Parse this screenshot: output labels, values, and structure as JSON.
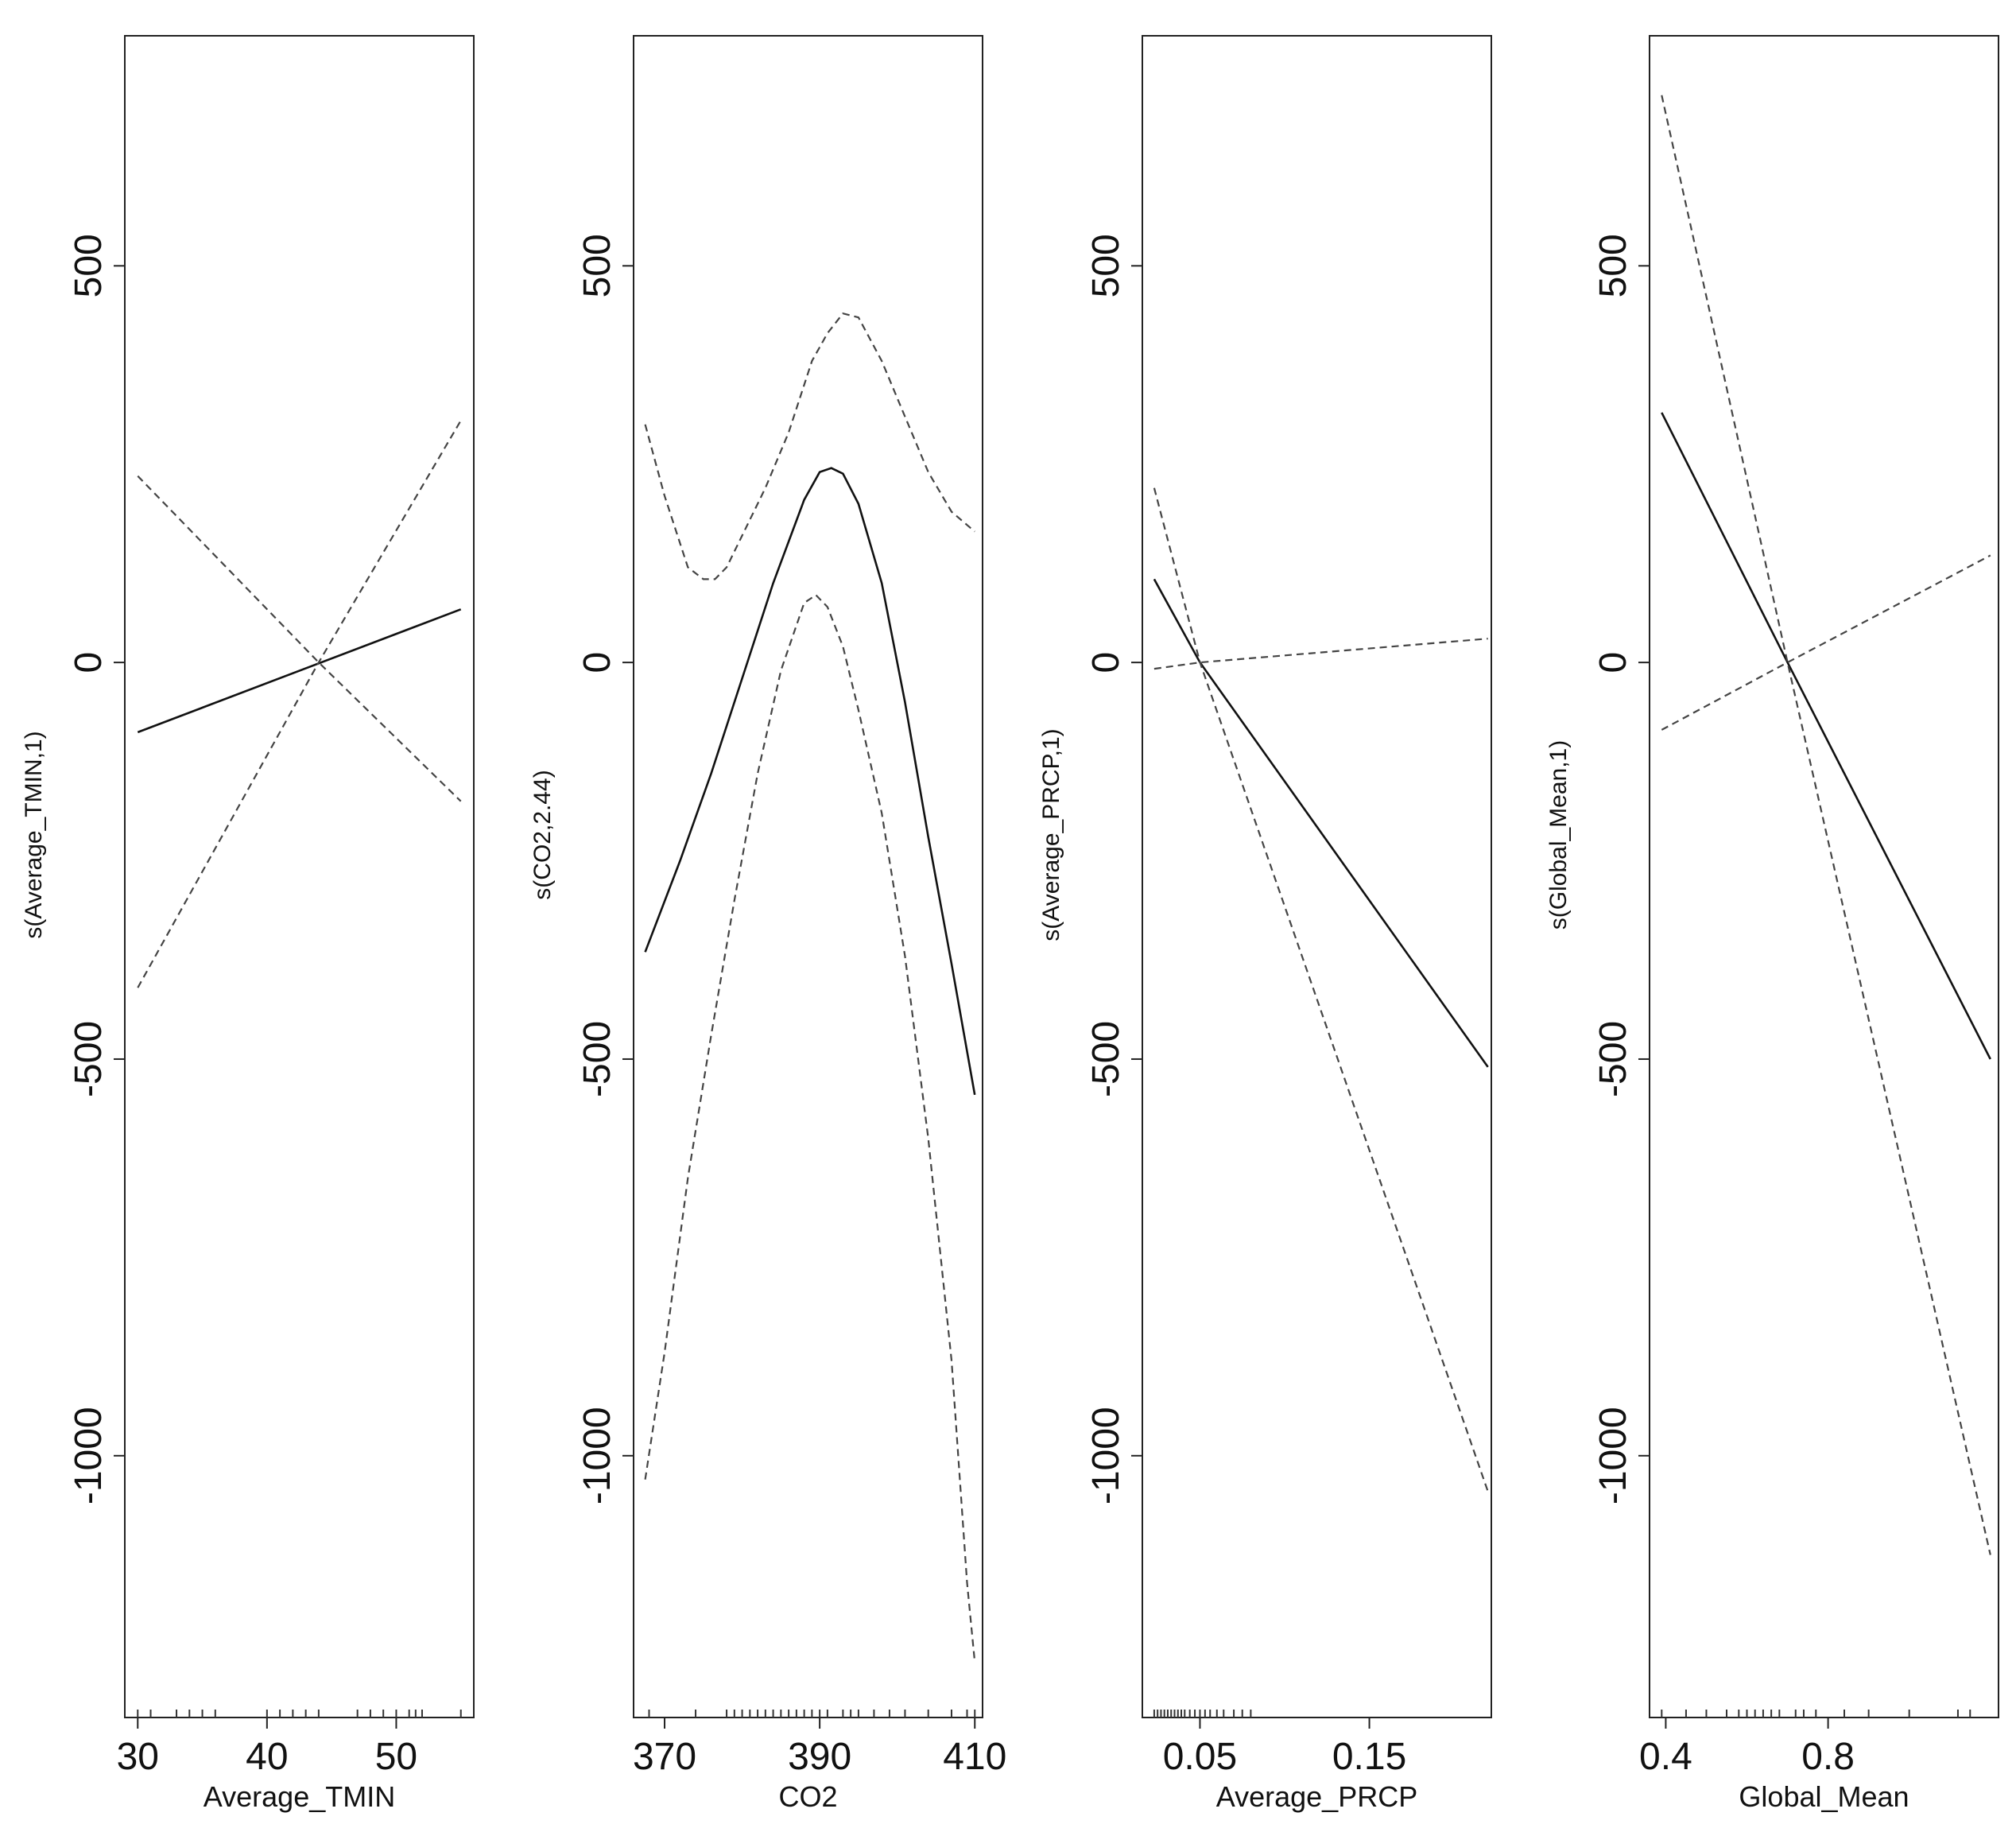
{
  "chart_data": [
    {
      "type": "line",
      "xlabel": "Average_TMIN",
      "ylabel": "s(Average_TMIN,1)",
      "xlim": [
        29,
        56
      ],
      "ylim": [
        -1330,
        790
      ],
      "xticks": [
        30,
        40,
        50
      ],
      "yticks": [
        500,
        0,
        -500,
        -1000
      ],
      "series": [
        {
          "style": "solid",
          "x": [
            30,
            55
          ],
          "y": [
            -88,
            67
          ]
        },
        {
          "style": "dashed",
          "x": [
            30,
            44,
            55
          ],
          "y": [
            235,
            0,
            -175
          ]
        },
        {
          "style": "dashed",
          "x": [
            30,
            44,
            55
          ],
          "y": [
            -410,
            0,
            305
          ]
        }
      ],
      "rug": [
        30,
        31,
        33,
        34,
        35,
        36,
        40,
        41,
        42,
        43,
        44,
        47,
        48,
        49,
        50,
        51,
        51.5,
        52,
        55
      ]
    },
    {
      "type": "line",
      "xlabel": "CO2",
      "ylabel": "s(CO2,2.44)",
      "xlim": [
        366,
        411
      ],
      "ylim": [
        -1330,
        790
      ],
      "xticks": [
        370,
        390,
        410
      ],
      "yticks": [
        500,
        0,
        -500,
        -1000
      ],
      "series": [
        {
          "style": "solid",
          "x": [
            367.5,
            372,
            376,
            380,
            384,
            388,
            390,
            391.5,
            393,
            395,
            398,
            401,
            404,
            407,
            410
          ],
          "y": [
            -365,
            -250,
            -140,
            -20,
            100,
            205,
            240,
            245,
            238,
            200,
            100,
            -50,
            -220,
            -380,
            -545
          ]
        },
        {
          "style": "dashed",
          "x": [
            367.5,
            370,
            373,
            375,
            376.5,
            378,
            380,
            383,
            386,
            389,
            391,
            393,
            395,
            398,
            401,
            404,
            407,
            410
          ],
          "y": [
            300,
            210,
            120,
            105,
            105,
            120,
            160,
            220,
            290,
            380,
            415,
            440,
            435,
            380,
            310,
            240,
            190,
            165
          ]
        },
        {
          "style": "dashed",
          "x": [
            367.5,
            370,
            373,
            376,
            379,
            382,
            385,
            388,
            389.5,
            391,
            393,
            395,
            398,
            401,
            404,
            407,
            409,
            410
          ],
          "y": [
            -1030,
            -870,
            -650,
            -470,
            -300,
            -140,
            -10,
            75,
            85,
            70,
            20,
            -60,
            -190,
            -370,
            -600,
            -880,
            -1160,
            -1260
          ]
        }
      ],
      "rug": [
        368,
        374,
        378,
        379,
        380,
        381,
        382,
        383,
        384,
        385,
        386,
        387,
        388,
        389,
        390,
        391,
        393,
        394,
        395,
        397,
        399,
        401,
        404,
        407,
        409,
        410
      ]
    },
    {
      "type": "line",
      "xlabel": "Average_PRCP",
      "ylabel": "s(Average_PRCP,1)",
      "xlim": [
        0.016,
        0.222
      ],
      "ylim": [
        -1330,
        790
      ],
      "xticks": [
        0.05,
        0.15
      ],
      "xtick_labels": [
        "0.05",
        "0.15"
      ],
      "yticks": [
        500,
        0,
        -500,
        -1000
      ],
      "series": [
        {
          "style": "solid",
          "x": [
            0.023,
            0.05,
            0.22
          ],
          "y": [
            105,
            0,
            -510
          ]
        },
        {
          "style": "dashed",
          "x": [
            0.023,
            0.05,
            0.22
          ],
          "y": [
            -8,
            0,
            30
          ]
        },
        {
          "style": "dashed",
          "x": [
            0.023,
            0.05,
            0.22
          ],
          "y": [
            220,
            0,
            -1045
          ]
        }
      ],
      "rug": [
        0.023,
        0.025,
        0.027,
        0.029,
        0.031,
        0.033,
        0.035,
        0.037,
        0.039,
        0.041,
        0.044,
        0.047,
        0.05,
        0.053,
        0.056,
        0.06,
        0.064,
        0.07,
        0.075,
        0.08
      ]
    },
    {
      "type": "line",
      "xlabel": "Global_Mean",
      "ylabel": "s(Global_Mean,1)",
      "xlim": [
        0.36,
        1.22
      ],
      "ylim": [
        -1330,
        790
      ],
      "xticks": [
        0.4,
        0.8
      ],
      "xtick_labels": [
        "0.4",
        "0.8"
      ],
      "yticks": [
        500,
        0,
        -500,
        -1000
      ],
      "series": [
        {
          "style": "solid",
          "x": [
            0.39,
            0.7,
            1.2
          ],
          "y": [
            315,
            0,
            -500
          ]
        },
        {
          "style": "dashed",
          "x": [
            0.39,
            0.7,
            1.2
          ],
          "y": [
            -85,
            0,
            135
          ]
        },
        {
          "style": "dashed",
          "x": [
            0.39,
            0.7,
            1.2
          ],
          "y": [
            715,
            0,
            -1125
          ]
        }
      ],
      "rug": [
        0.39,
        0.45,
        0.5,
        0.55,
        0.58,
        0.6,
        0.62,
        0.64,
        0.66,
        0.68,
        0.72,
        0.74,
        0.77,
        0.84,
        0.9,
        1.0,
        1.12,
        1.15
      ]
    }
  ]
}
